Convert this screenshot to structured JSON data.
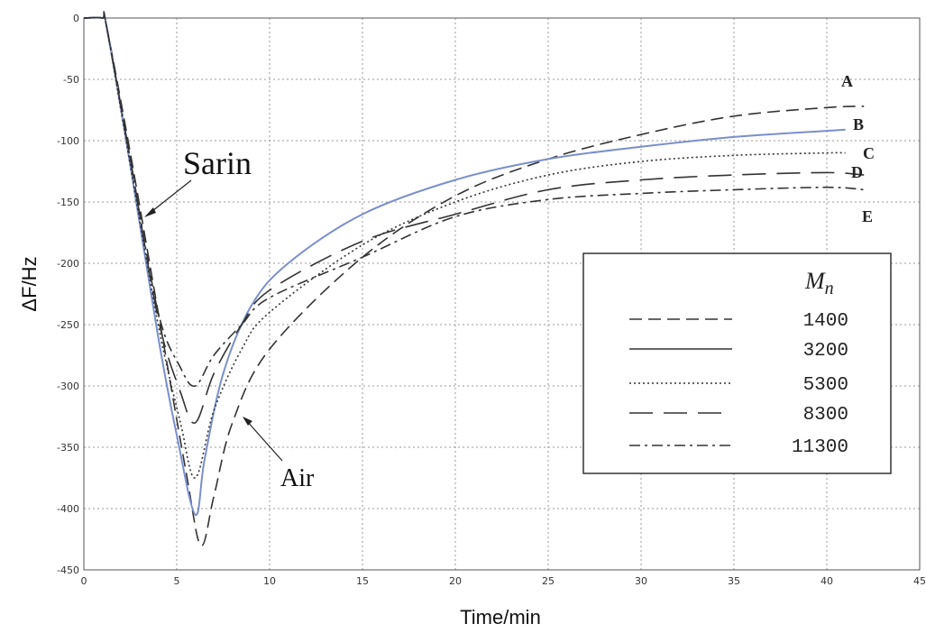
{
  "chart_data": {
    "type": "line",
    "title": "",
    "xlabel": "Time/min",
    "ylabel": "ΔF/Hz",
    "xlim": [
      0,
      45
    ],
    "ylim": [
      -450,
      0
    ],
    "xticks": [
      "0",
      "5",
      "10",
      "15",
      "20",
      "25",
      "30",
      "35",
      "40",
      "45"
    ],
    "yticks": [
      "0",
      "-50",
      "-100",
      "-150",
      "-200",
      "-250",
      "-300",
      "-350",
      "-400",
      "-450"
    ],
    "grid": true,
    "legend": {
      "title": "Mn",
      "title_main": "M",
      "title_sub": "n",
      "placement": "right",
      "entries": [
        "1400",
        "3200",
        "5300",
        "8300",
        "11300"
      ]
    },
    "annotations": [
      {
        "text": "Sarin",
        "x": 3.4,
        "y": -155
      },
      {
        "text": "Air",
        "x": 8.8,
        "y": -375
      }
    ],
    "series": [
      {
        "name": "1400",
        "curve_label": "A",
        "style": "dashed",
        "color": "#333333",
        "points": [
          [
            0,
            0
          ],
          [
            1,
            0
          ],
          [
            1.2,
            -5
          ],
          [
            2.5,
            -110
          ],
          [
            4,
            -240
          ],
          [
            5.5,
            -370
          ],
          [
            6.3,
            -430
          ],
          [
            7,
            -390
          ],
          [
            8,
            -330
          ],
          [
            10,
            -270
          ],
          [
            15,
            -195
          ],
          [
            20,
            -145
          ],
          [
            25,
            -115
          ],
          [
            30,
            -95
          ],
          [
            35,
            -80
          ],
          [
            40,
            -73
          ],
          [
            42,
            -72
          ]
        ]
      },
      {
        "name": "3200",
        "curve_label": "B",
        "style": "solid",
        "color": "#7a8fcc",
        "points": [
          [
            0,
            0
          ],
          [
            1,
            0
          ],
          [
            1.2,
            -5
          ],
          [
            2.5,
            -120
          ],
          [
            4,
            -260
          ],
          [
            5,
            -340
          ],
          [
            6,
            -405
          ],
          [
            6.5,
            -360
          ],
          [
            7.5,
            -290
          ],
          [
            9,
            -235
          ],
          [
            11,
            -200
          ],
          [
            15,
            -160
          ],
          [
            20,
            -132
          ],
          [
            25,
            -115
          ],
          [
            30,
            -105
          ],
          [
            35,
            -97
          ],
          [
            40,
            -92
          ],
          [
            41,
            -91
          ]
        ]
      },
      {
        "name": "5300",
        "curve_label": "C",
        "style": "dotted",
        "color": "#333333",
        "points": [
          [
            0,
            0
          ],
          [
            1,
            0
          ],
          [
            1.2,
            -5
          ],
          [
            2.5,
            -120
          ],
          [
            4,
            -250
          ],
          [
            5.2,
            -330
          ],
          [
            6,
            -375
          ],
          [
            7,
            -320
          ],
          [
            8.5,
            -270
          ],
          [
            10,
            -240
          ],
          [
            15,
            -185
          ],
          [
            20,
            -150
          ],
          [
            25,
            -128
          ],
          [
            30,
            -117
          ],
          [
            35,
            -112
          ],
          [
            40,
            -110
          ],
          [
            41,
            -110
          ]
        ]
      },
      {
        "name": "8300",
        "curve_label": "D",
        "style": "long-dashed",
        "color": "#333333",
        "points": [
          [
            0,
            0
          ],
          [
            1,
            0
          ],
          [
            1.2,
            -5
          ],
          [
            2.5,
            -115
          ],
          [
            4,
            -245
          ],
          [
            5.2,
            -305
          ],
          [
            6,
            -330
          ],
          [
            7,
            -290
          ],
          [
            8.5,
            -250
          ],
          [
            10,
            -222
          ],
          [
            15,
            -182
          ],
          [
            20,
            -160
          ],
          [
            25,
            -140
          ],
          [
            30,
            -132
          ],
          [
            35,
            -128
          ],
          [
            40,
            -126
          ],
          [
            42,
            -128
          ]
        ]
      },
      {
        "name": "11300",
        "curve_label": "E",
        "style": "dash-dot",
        "color": "#333333",
        "points": [
          [
            0,
            0
          ],
          [
            1,
            0
          ],
          [
            1.2,
            -5
          ],
          [
            2.5,
            -115
          ],
          [
            4,
            -240
          ],
          [
            5.2,
            -285
          ],
          [
            6,
            -300
          ],
          [
            7,
            -275
          ],
          [
            8.5,
            -250
          ],
          [
            10,
            -228
          ],
          [
            15,
            -195
          ],
          [
            20,
            -162
          ],
          [
            25,
            -148
          ],
          [
            30,
            -143
          ],
          [
            35,
            -140
          ],
          [
            40,
            -138
          ],
          [
            42,
            -140
          ]
        ]
      }
    ],
    "colors": {
      "accent_series": "#7a8fcc",
      "ink": "#333333",
      "grid": "#9a9a9a"
    }
  }
}
